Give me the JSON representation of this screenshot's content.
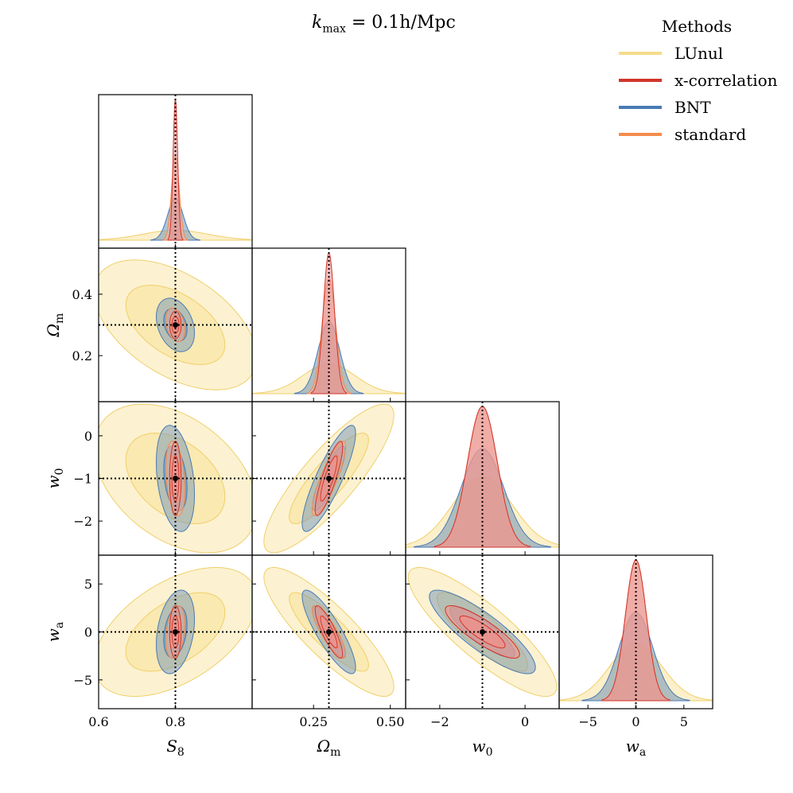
{
  "title": "k_max = 0.1h/Mpc",
  "title_parts": {
    "k": "k",
    "sub": "max",
    "rest": " = 0.1h/Mpc"
  },
  "legend": {
    "title": "Methods",
    "entries": [
      {
        "name": "LUnul",
        "color": "#f5dc8c"
      },
      {
        "name": "x-correlation",
        "color": "#d1352b"
      },
      {
        "name": "BNT",
        "color": "#4a7ab5"
      },
      {
        "name": "standard",
        "color": "#f58b4c"
      }
    ]
  },
  "colors": {
    "lunul_fill": "#f9e4a0",
    "lunul_line": "#f0cf6a",
    "xcorr_fill": "#e7898b",
    "xcorr_line": "#d1352b",
    "bnt_fill": "#6f93b6",
    "bnt_line": "#4a7ab5",
    "std_fill": "#f7b79a",
    "std_line": "#f58b4c",
    "truth_marker": "#000000"
  },
  "chart_data": {
    "type": "corner",
    "parameters": [
      {
        "key": "S8",
        "label": "S_8",
        "fiducial": 0.8,
        "range": [
          0.6,
          1.0
        ],
        "ticks": [
          0.6,
          0.8
        ],
        "tick_labels": [
          "0.6",
          "0.8"
        ]
      },
      {
        "key": "Om",
        "label": "Ω_m",
        "fiducial": 0.3,
        "range": [
          0.05,
          0.55
        ],
        "ticks": [
          0.25,
          0.5
        ],
        "tick_labels": [
          "0.25",
          "0.50"
        ],
        "y_ticks": [
          0.2,
          0.4
        ],
        "y_tick_labels": [
          "0.2",
          "0.4"
        ]
      },
      {
        "key": "w0",
        "label": "w_0",
        "fiducial": -1.0,
        "range": [
          -2.8,
          0.8
        ],
        "ticks": [
          -2,
          0
        ],
        "tick_labels": [
          "−2",
          "0"
        ],
        "y_ticks": [
          -2,
          -1,
          0
        ],
        "y_tick_labels": [
          "−2",
          "−1",
          "0"
        ]
      },
      {
        "key": "wa",
        "label": "w_a",
        "fiducial": 0.0,
        "range": [
          -8,
          8
        ],
        "ticks": [
          -5,
          0,
          5
        ],
        "tick_labels": [
          "−5",
          "0",
          "5"
        ],
        "y_ticks": [
          -5,
          0,
          5
        ],
        "y_tick_labels": [
          "−5",
          "0",
          "5"
        ]
      }
    ],
    "methods": [
      {
        "name": "LUnul",
        "sigma": {
          "S8": 0.085,
          "Om": 0.085,
          "w0": 0.7,
          "wa": 2.7
        },
        "corr": {
          "S8-Om": -0.5,
          "S8-w0": -0.4,
          "S8-wa": 0.5,
          "Om-w0": 0.85,
          "Om-wa": -0.85,
          "w0-wa": -0.85
        }
      },
      {
        "name": "BNT",
        "sigma": {
          "S8": 0.02,
          "Om": 0.035,
          "w0": 0.5,
          "wa": 1.75
        },
        "corr": {
          "S8-Om": -0.3,
          "S8-w0": -0.3,
          "S8-wa": 0.3,
          "Om-w0": 0.85,
          "Om-wa": -0.85,
          "w0-wa": -0.85
        }
      },
      {
        "name": "standard",
        "sigma": {
          "S8": 0.01,
          "Om": 0.022,
          "w0": 0.35,
          "wa": 1.1
        },
        "corr": {
          "S8-Om": -0.3,
          "S8-w0": -0.3,
          "S8-wa": 0.3,
          "Om-w0": 0.85,
          "Om-wa": -0.85,
          "w0-wa": -0.85
        }
      },
      {
        "name": "x-correlation",
        "sigma": {
          "S8": 0.006,
          "Om": 0.018,
          "w0": 0.35,
          "wa": 1.1
        },
        "corr": {
          "S8-Om": 0.0,
          "S8-w0": 0.0,
          "S8-wa": 0.0,
          "Om-w0": 0.85,
          "Om-wa": -0.85,
          "w0-wa": -0.85
        }
      }
    ]
  }
}
